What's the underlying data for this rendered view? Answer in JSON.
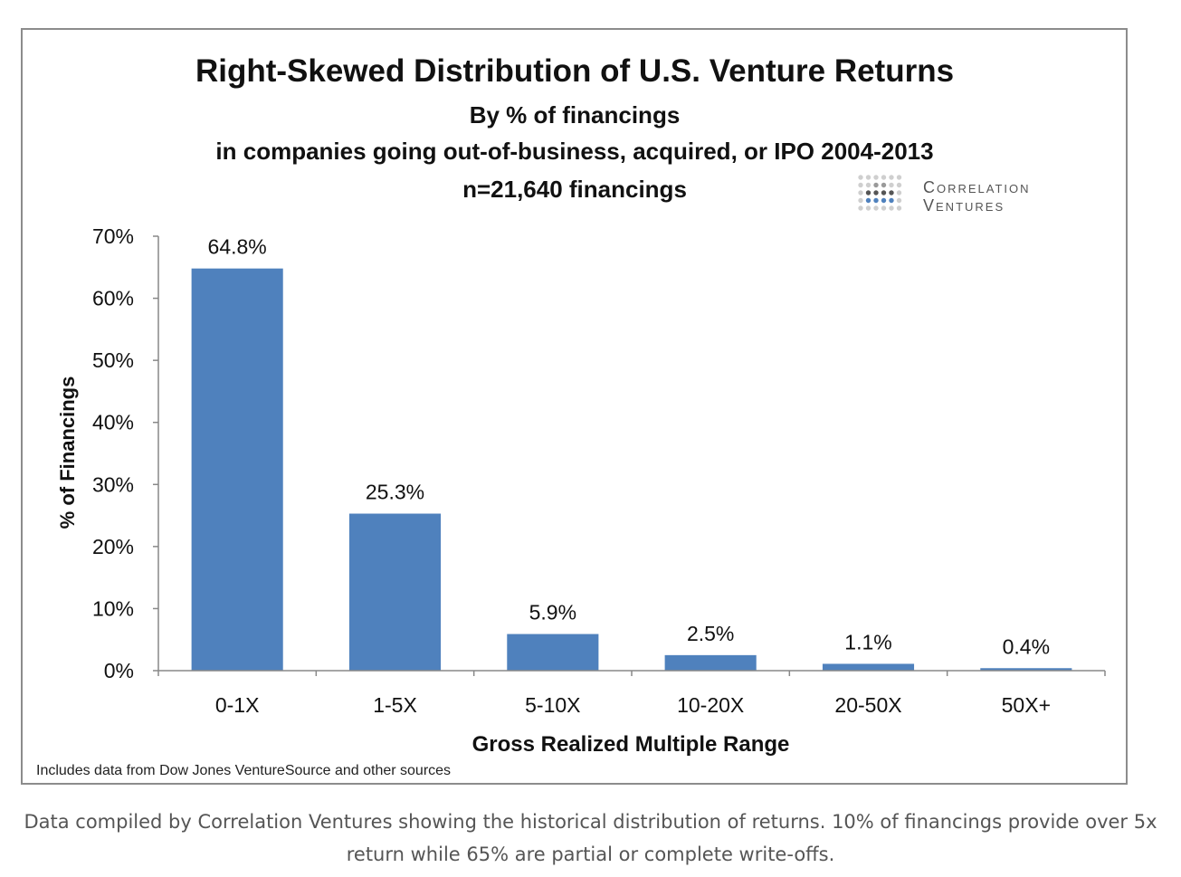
{
  "chart_data": {
    "type": "bar",
    "title": "Right-Skewed Distribution of U.S. Venture Returns",
    "subtitle_lines": [
      "By % of financings",
      "in companies going out-of-business, acquired, or IPO 2004-2013",
      "n=21,640 financings"
    ],
    "categories": [
      "0-1X",
      "1-5X",
      "5-10X",
      "10-20X",
      "20-50X",
      "50X+"
    ],
    "values": [
      64.8,
      25.3,
      5.9,
      2.5,
      1.1,
      0.4
    ],
    "data_labels": [
      "64.8%",
      "25.3%",
      "5.9%",
      "2.5%",
      "1.1%",
      "0.4%"
    ],
    "y_ticks": [
      "0%",
      "10%",
      "20%",
      "30%",
      "40%",
      "50%",
      "60%",
      "70%"
    ],
    "ylim": [
      0,
      70
    ],
    "xlabel": "Gross Realized Multiple Range",
    "ylabel": "% of Financings",
    "grid": false,
    "legend": "none",
    "bar_color": "#4f81bd",
    "source_note": "Includes data from Dow Jones VentureSource and other sources"
  },
  "logo": {
    "line1": "Correlation",
    "line2": "Ventures"
  },
  "caption": "Data compiled by Correlation Ventures showing the historical distribution of returns. 10% of financings provide over 5x return while 65% are partial or complete write-offs."
}
